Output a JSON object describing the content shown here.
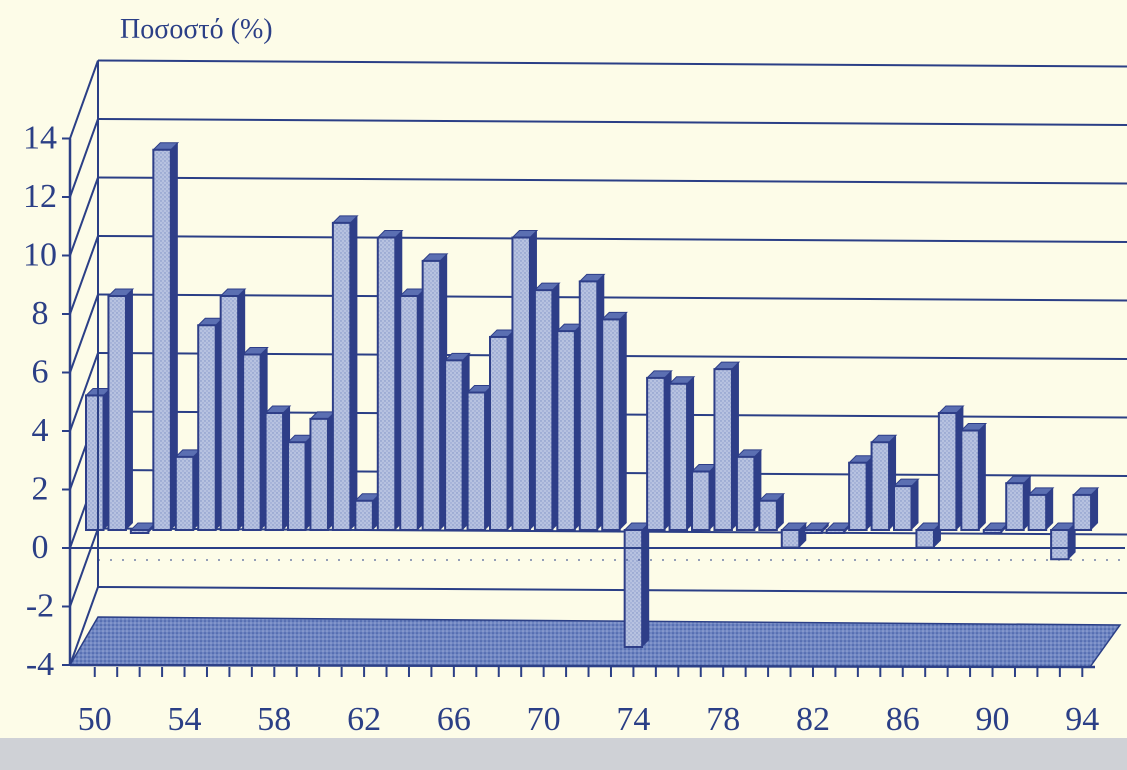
{
  "chart_data": {
    "type": "bar",
    "ylabel": "Ποσοστό (%)",
    "xlabel": "",
    "ylim": [
      -4,
      14
    ],
    "yticks": [
      "14",
      "12",
      "10",
      "8",
      "6",
      "4",
      "2",
      "0",
      "-2",
      "-4"
    ],
    "xtick_labels": [
      "50",
      "54",
      "58",
      "62",
      "66",
      "70",
      "74",
      "78",
      "82",
      "86",
      "90",
      "94"
    ],
    "categories": [
      "50",
      "51",
      "52",
      "53",
      "54",
      "55",
      "56",
      "57",
      "58",
      "59",
      "60",
      "61",
      "62",
      "63",
      "64",
      "65",
      "66",
      "67",
      "68",
      "69",
      "70",
      "71",
      "72",
      "73",
      "74",
      "75",
      "76",
      "77",
      "78",
      "79",
      "80",
      "81",
      "82",
      "83",
      "84",
      "85",
      "86",
      "87",
      "88",
      "89",
      "90",
      "91",
      "92",
      "93",
      "94"
    ],
    "values": [
      4.6,
      8,
      0,
      13,
      2.5,
      7,
      8,
      6,
      4,
      3,
      3.8,
      10.5,
      1,
      10,
      8,
      9.2,
      5.8,
      4.7,
      6.6,
      10,
      8.2,
      6.8,
      8.5,
      7.2,
      -4,
      5.2,
      5,
      2,
      5.5,
      2.5,
      1,
      -0.6,
      0,
      0,
      2.3,
      3,
      1.5,
      -0.6,
      4,
      3.4,
      0,
      1.6,
      1.2,
      -1,
      1.2
    ],
    "grid": true,
    "colors": {
      "bar": "#a9b6d8",
      "bar_dark": "#2e3e88",
      "axis": "#2b3f86",
      "background": "#fdfce8",
      "floor": "#5a73b8"
    }
  }
}
